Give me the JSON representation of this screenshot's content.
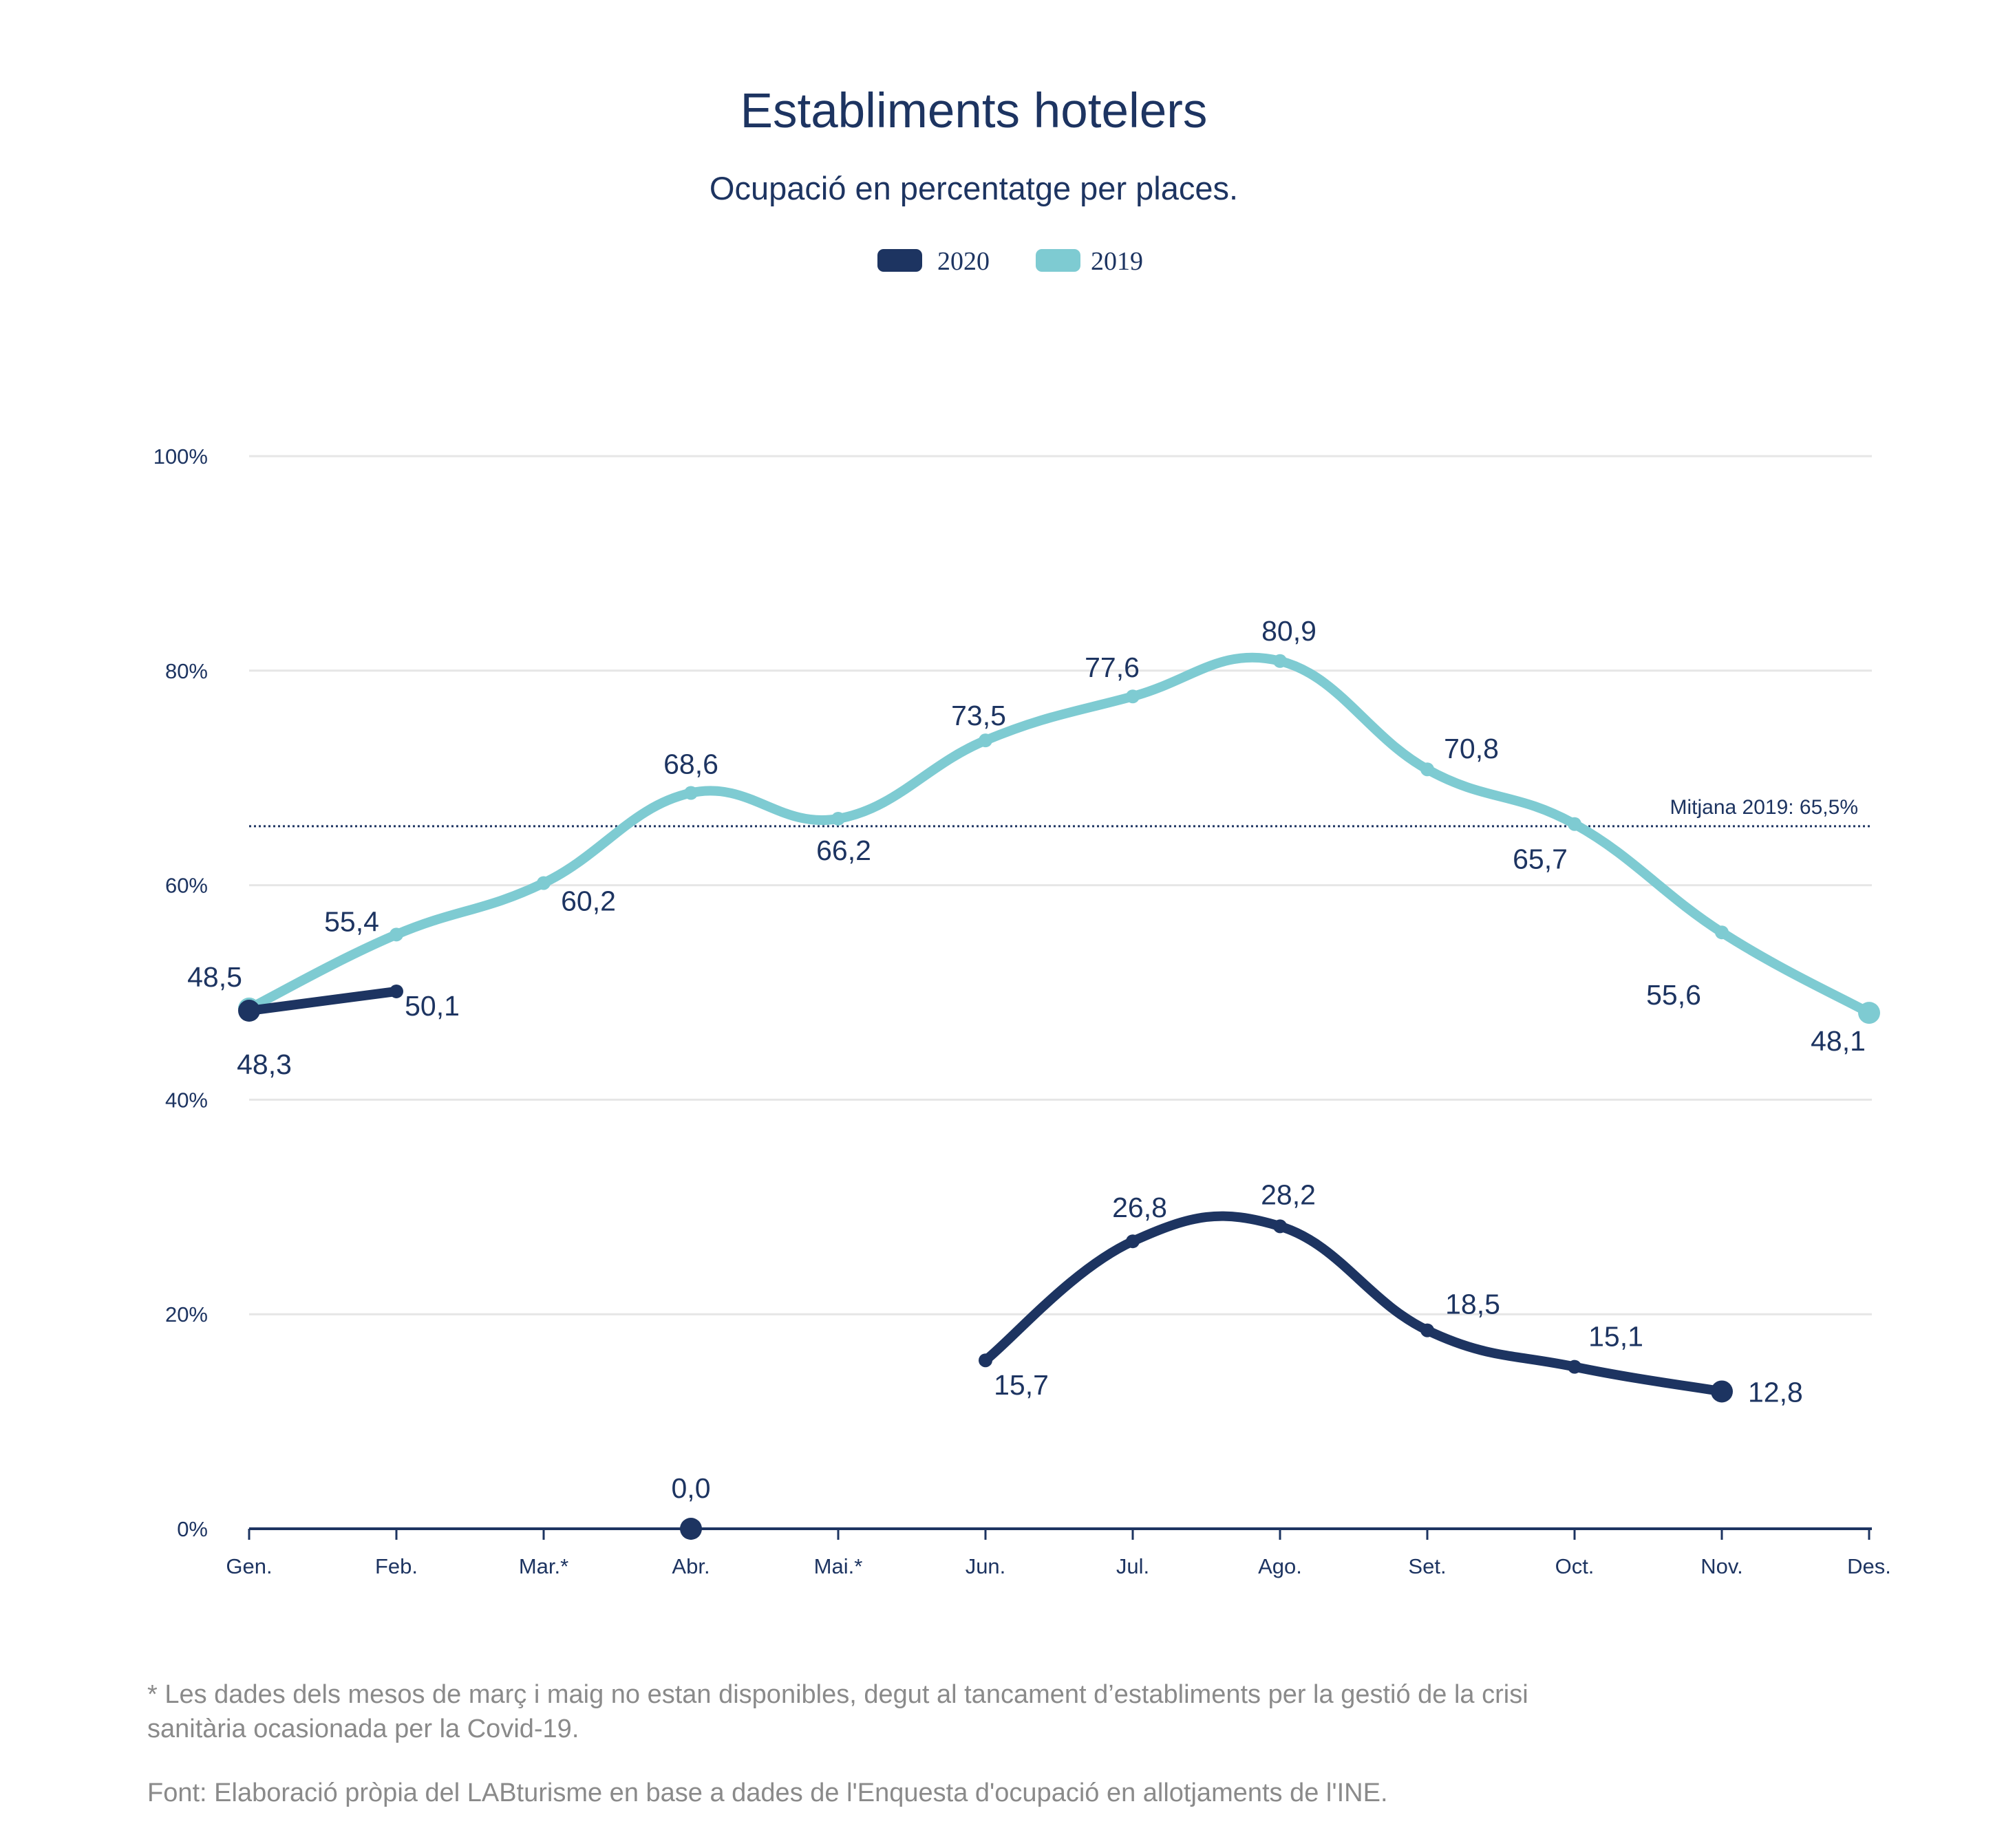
{
  "chart_data": {
    "type": "line",
    "title": "Establiments hotelers",
    "subtitle": "Ocupació en percentatge per places.",
    "categories": [
      "Gen.",
      "Feb.",
      "Mar.*",
      "Abr.",
      "Mai.*",
      "Jun.",
      "Jul.",
      "Ago.",
      "Set.",
      "Oct.",
      "Nov.",
      "Des."
    ],
    "ylim": [
      0,
      100
    ],
    "yticks": [
      0,
      20,
      40,
      60,
      80,
      100
    ],
    "ytick_labels": [
      "0%",
      "20%",
      "40%",
      "60%",
      "80%",
      "100%"
    ],
    "grid": true,
    "legend_position": "top-center",
    "series": [
      {
        "name": "2020",
        "color": "#1d3461",
        "values": [
          48.3,
          50.1,
          null,
          0.0,
          null,
          15.7,
          26.8,
          28.2,
          18.5,
          15.1,
          12.8,
          null
        ],
        "labels": [
          "48,3",
          "50,1",
          null,
          "0,0",
          null,
          "15,7",
          "26,8",
          "28,2",
          "18,5",
          "15,1",
          "12,8",
          null
        ]
      },
      {
        "name": "2019",
        "color": "#7ecbd2",
        "values": [
          48.5,
          55.4,
          60.2,
          68.6,
          66.2,
          73.5,
          77.6,
          80.9,
          70.8,
          65.7,
          55.6,
          48.1
        ],
        "labels": [
          "48,5",
          "55,4",
          "60,2",
          "68,6",
          "66,2",
          "73,5",
          "77,6",
          "80,9",
          "70,8",
          "65,7",
          "55,6",
          "48,1"
        ]
      }
    ],
    "reference_line": {
      "value": 65.5,
      "label": "Mitjana 2019: 65,5%",
      "color": "#1d3461",
      "style": "dotted"
    }
  },
  "notes": {
    "footnote_line1": "* Les dades dels mesos de març i maig no estan disponibles, degut al tancament d’establiments per la gestió de la crisi",
    "footnote_line2": "sanitària ocasionada per la Covid-19.",
    "source": "Font: Elaboració pròpia del LABturisme en base a dades de l'Enquesta d'ocupació en allotjaments de l'INE."
  }
}
